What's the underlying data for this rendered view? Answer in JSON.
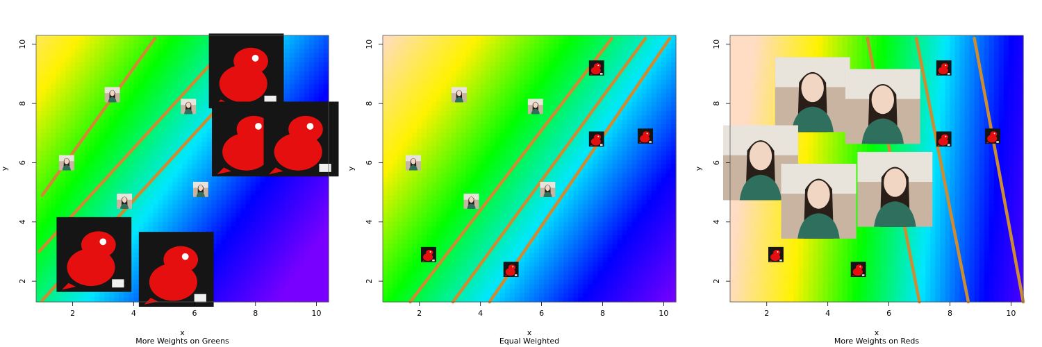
{
  "colors": {
    "boundary": "#cd8c32",
    "gradient_stops": [
      "#ffdcc4",
      "#fff200",
      "#00ff00",
      "#00e7ff",
      "#0000ff",
      "#7800ff"
    ],
    "red_sample": "#e60f0f",
    "green_sample_bg": "#c8b4a0"
  },
  "chart_data": [
    {
      "type": "scatter",
      "title": "",
      "xlabel": "x",
      "ylabel": "y",
      "subtitle": "More Weights on Greens",
      "xlim": [
        0.8,
        10.4
      ],
      "ylim": [
        1.3,
        10.3
      ],
      "xticks": [
        "2",
        "4",
        "6",
        "8",
        "10"
      ],
      "yticks": [
        "2",
        "4",
        "6",
        "8",
        "10"
      ],
      "color_slope": 1.5,
      "color_offset": 1.8,
      "boundaries": [
        {
          "p1": [
            1.0,
            4.9
          ],
          "p2": [
            4.7,
            10.2
          ]
        },
        {
          "p1": [
            0.9,
            3.0
          ],
          "p2": [
            6.5,
            9.3
          ]
        },
        {
          "p1": [
            1.0,
            1.35
          ],
          "p2": [
            6.9,
            8.0
          ]
        }
      ],
      "green_points": [
        {
          "x": 1.8,
          "y": 6.0,
          "size": "small"
        },
        {
          "x": 3.3,
          "y": 8.3,
          "size": "small"
        },
        {
          "x": 3.7,
          "y": 4.7,
          "size": "small"
        },
        {
          "x": 5.8,
          "y": 7.9,
          "size": "small"
        },
        {
          "x": 6.2,
          "y": 5.1,
          "size": "small"
        }
      ],
      "red_points": [
        {
          "x": 2.7,
          "y": 2.9,
          "size": "large"
        },
        {
          "x": 5.4,
          "y": 2.4,
          "size": "large"
        },
        {
          "x": 7.7,
          "y": 9.1,
          "size": "large"
        },
        {
          "x": 7.8,
          "y": 6.8,
          "size": "large"
        },
        {
          "x": 9.5,
          "y": 6.8,
          "size": "large"
        }
      ]
    },
    {
      "type": "scatter",
      "title": "",
      "xlabel": "x",
      "ylabel": "y",
      "subtitle": "Equal Weighted",
      "xlim": [
        0.8,
        10.4
      ],
      "ylim": [
        1.3,
        10.3
      ],
      "xticks": [
        "2",
        "4",
        "6",
        "8",
        "10"
      ],
      "yticks": [
        "2",
        "4",
        "6",
        "8",
        "10"
      ],
      "color_slope": 1.5,
      "color_offset": 0.0,
      "boundaries": [
        {
          "p1": [
            1.7,
            1.3
          ],
          "p2": [
            8.3,
            10.2
          ]
        },
        {
          "p1": [
            3.1,
            1.3
          ],
          "p2": [
            9.4,
            10.2
          ]
        },
        {
          "p1": [
            4.3,
            1.3
          ],
          "p2": [
            10.2,
            10.2
          ]
        }
      ],
      "green_points": [
        {
          "x": 1.8,
          "y": 6.0,
          "size": "small"
        },
        {
          "x": 3.3,
          "y": 8.3,
          "size": "small"
        },
        {
          "x": 3.7,
          "y": 4.7,
          "size": "small"
        },
        {
          "x": 5.8,
          "y": 7.9,
          "size": "small"
        },
        {
          "x": 6.2,
          "y": 5.1,
          "size": "small"
        }
      ],
      "red_points": [
        {
          "x": 2.3,
          "y": 2.9,
          "size": "small"
        },
        {
          "x": 5.0,
          "y": 2.4,
          "size": "small"
        },
        {
          "x": 7.8,
          "y": 9.2,
          "size": "small"
        },
        {
          "x": 7.8,
          "y": 6.8,
          "size": "small"
        },
        {
          "x": 9.4,
          "y": 6.9,
          "size": "small"
        }
      ]
    },
    {
      "type": "scatter",
      "title": "",
      "xlabel": "x",
      "ylabel": "y",
      "subtitle": "More Weights on Reds",
      "xlim": [
        0.8,
        10.4
      ],
      "ylim": [
        1.3,
        10.3
      ],
      "xticks": [
        "2",
        "4",
        "6",
        "8",
        "10"
      ],
      "yticks": [
        "2",
        "4",
        "6",
        "8",
        "10"
      ],
      "color_slope": 10.0,
      "color_offset": -1.3,
      "boundaries": [
        {
          "p1": [
            5.3,
            10.2
          ],
          "p2": [
            7.0,
            1.3
          ]
        },
        {
          "p1": [
            6.9,
            10.2
          ],
          "p2": [
            8.6,
            1.3
          ]
        },
        {
          "p1": [
            8.8,
            10.2
          ],
          "p2": [
            10.4,
            1.3
          ]
        }
      ],
      "green_points": [
        {
          "x": 3.5,
          "y": 8.3,
          "size": "large"
        },
        {
          "x": 5.8,
          "y": 7.9,
          "size": "large"
        },
        {
          "x": 1.8,
          "y": 6.0,
          "size": "large"
        },
        {
          "x": 3.7,
          "y": 4.7,
          "size": "large"
        },
        {
          "x": 6.2,
          "y": 5.1,
          "size": "large"
        }
      ],
      "red_points": [
        {
          "x": 2.3,
          "y": 2.9,
          "size": "small"
        },
        {
          "x": 5.0,
          "y": 2.4,
          "size": "small"
        },
        {
          "x": 7.8,
          "y": 9.2,
          "size": "small"
        },
        {
          "x": 7.8,
          "y": 6.8,
          "size": "small"
        },
        {
          "x": 9.4,
          "y": 6.9,
          "size": "small"
        }
      ]
    }
  ]
}
